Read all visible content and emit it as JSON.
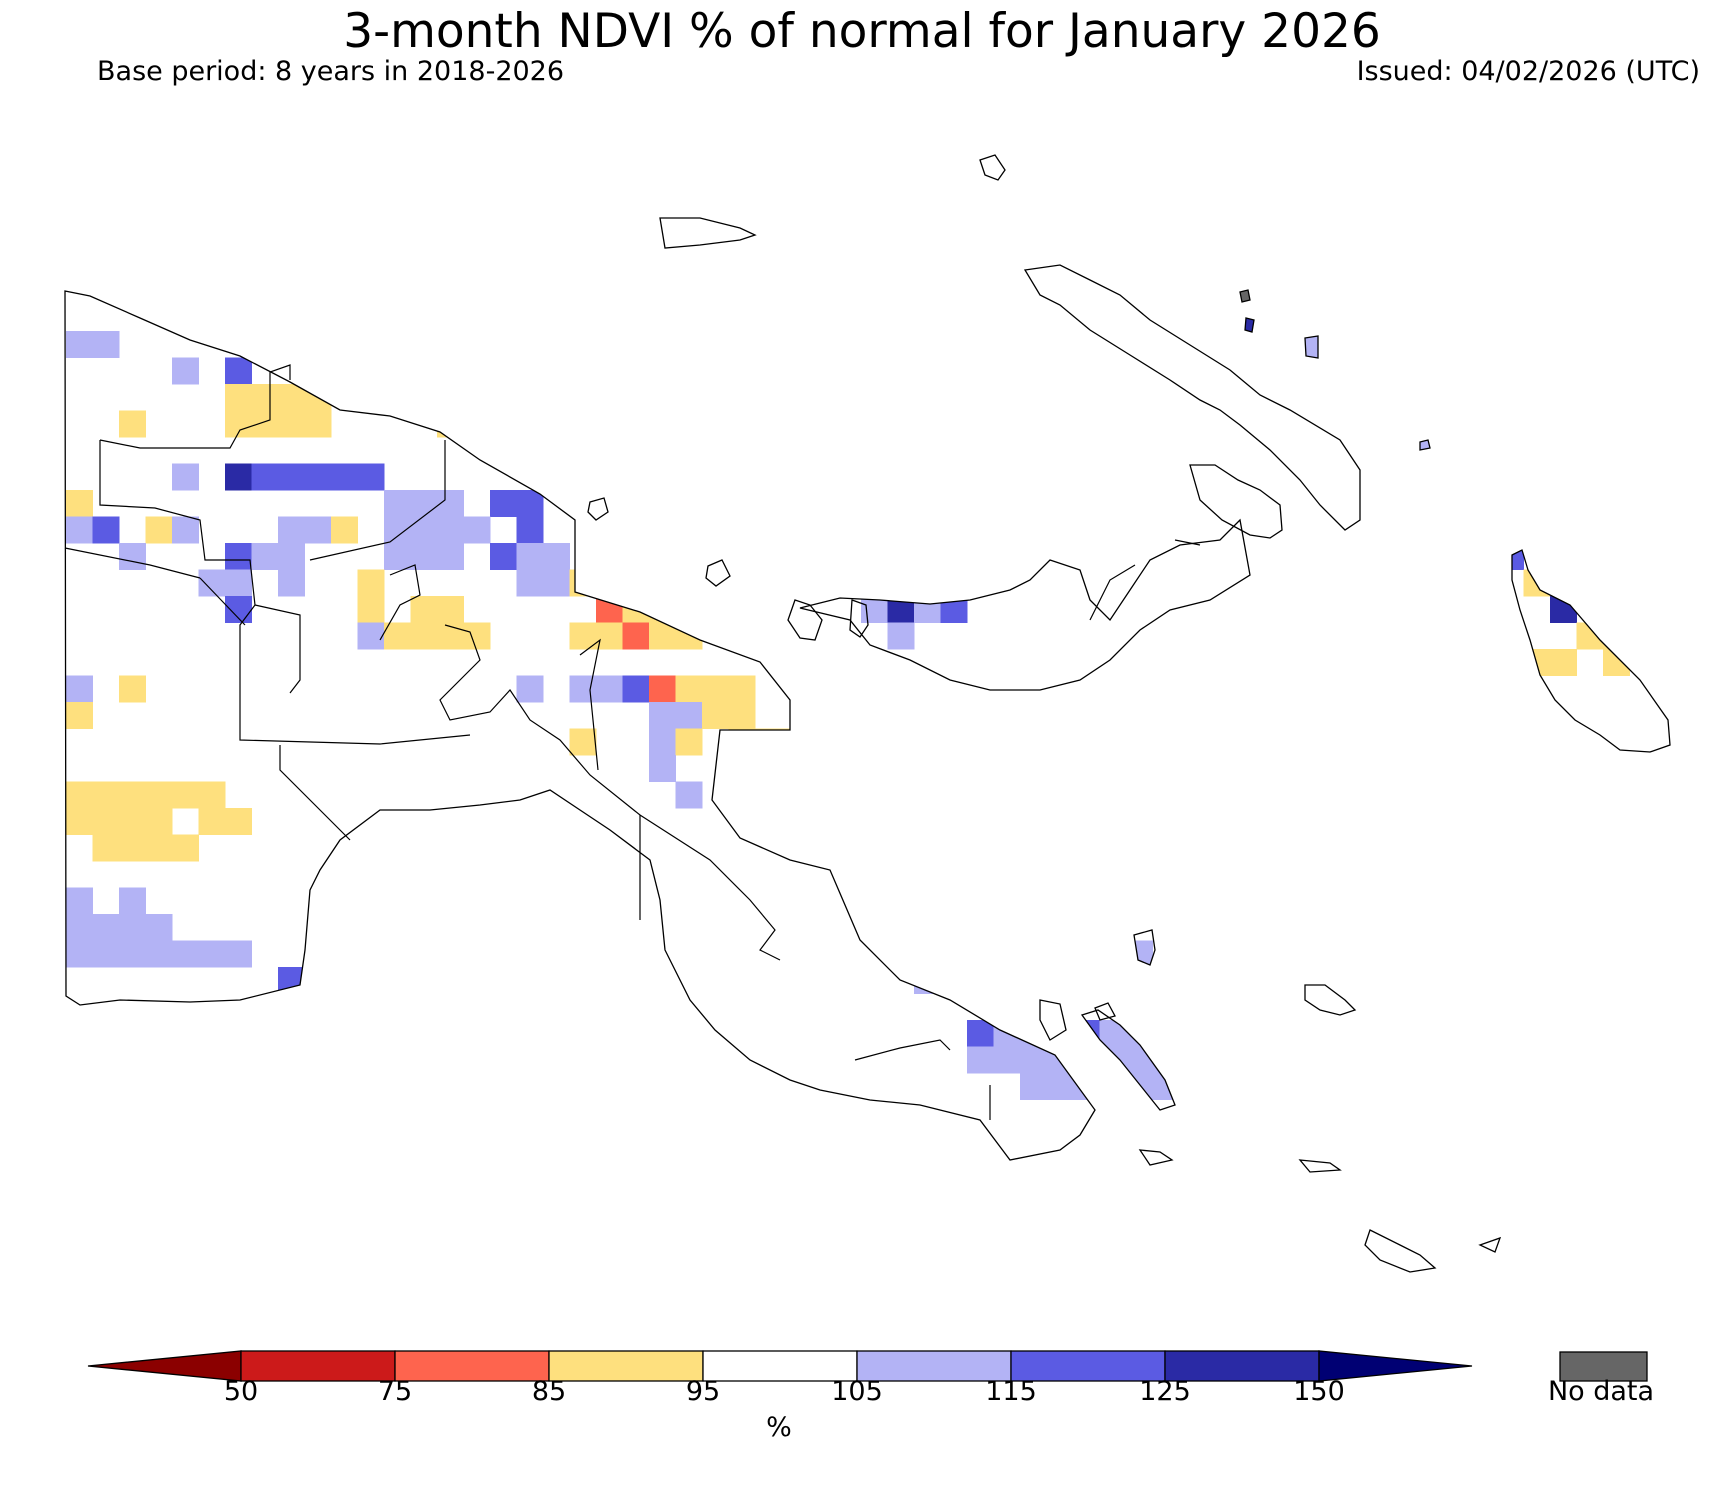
{
  "header": {
    "title": "3-month NDVI % of normal for January 2026",
    "base_period": "Base period: 8 years in 2018-2026",
    "issued": "Issued: 04/02/2026 (UTC)"
  },
  "colorbar": {
    "ticks": [
      "50",
      "75",
      "85",
      "95",
      "105",
      "115",
      "125",
      "150"
    ],
    "unit": "%",
    "bins": [
      {
        "range": "<50",
        "color": "#8b0000"
      },
      {
        "range": "50-75",
        "color": "#cc1a1a"
      },
      {
        "range": "75-85",
        "color": "#fe644e"
      },
      {
        "range": "85-95",
        "color": "#fee07e"
      },
      {
        "range": "95-105",
        "color": "#ffffff"
      },
      {
        "range": "105-115",
        "color": "#b3b3f5"
      },
      {
        "range": "115-125",
        "color": "#5b5be3"
      },
      {
        "range": "125-150",
        "color": "#2a2aa5"
      },
      {
        "range": ">150",
        "color": "#000073"
      }
    ],
    "no_data_label": "No data",
    "no_data_color": "#666666"
  }
}
